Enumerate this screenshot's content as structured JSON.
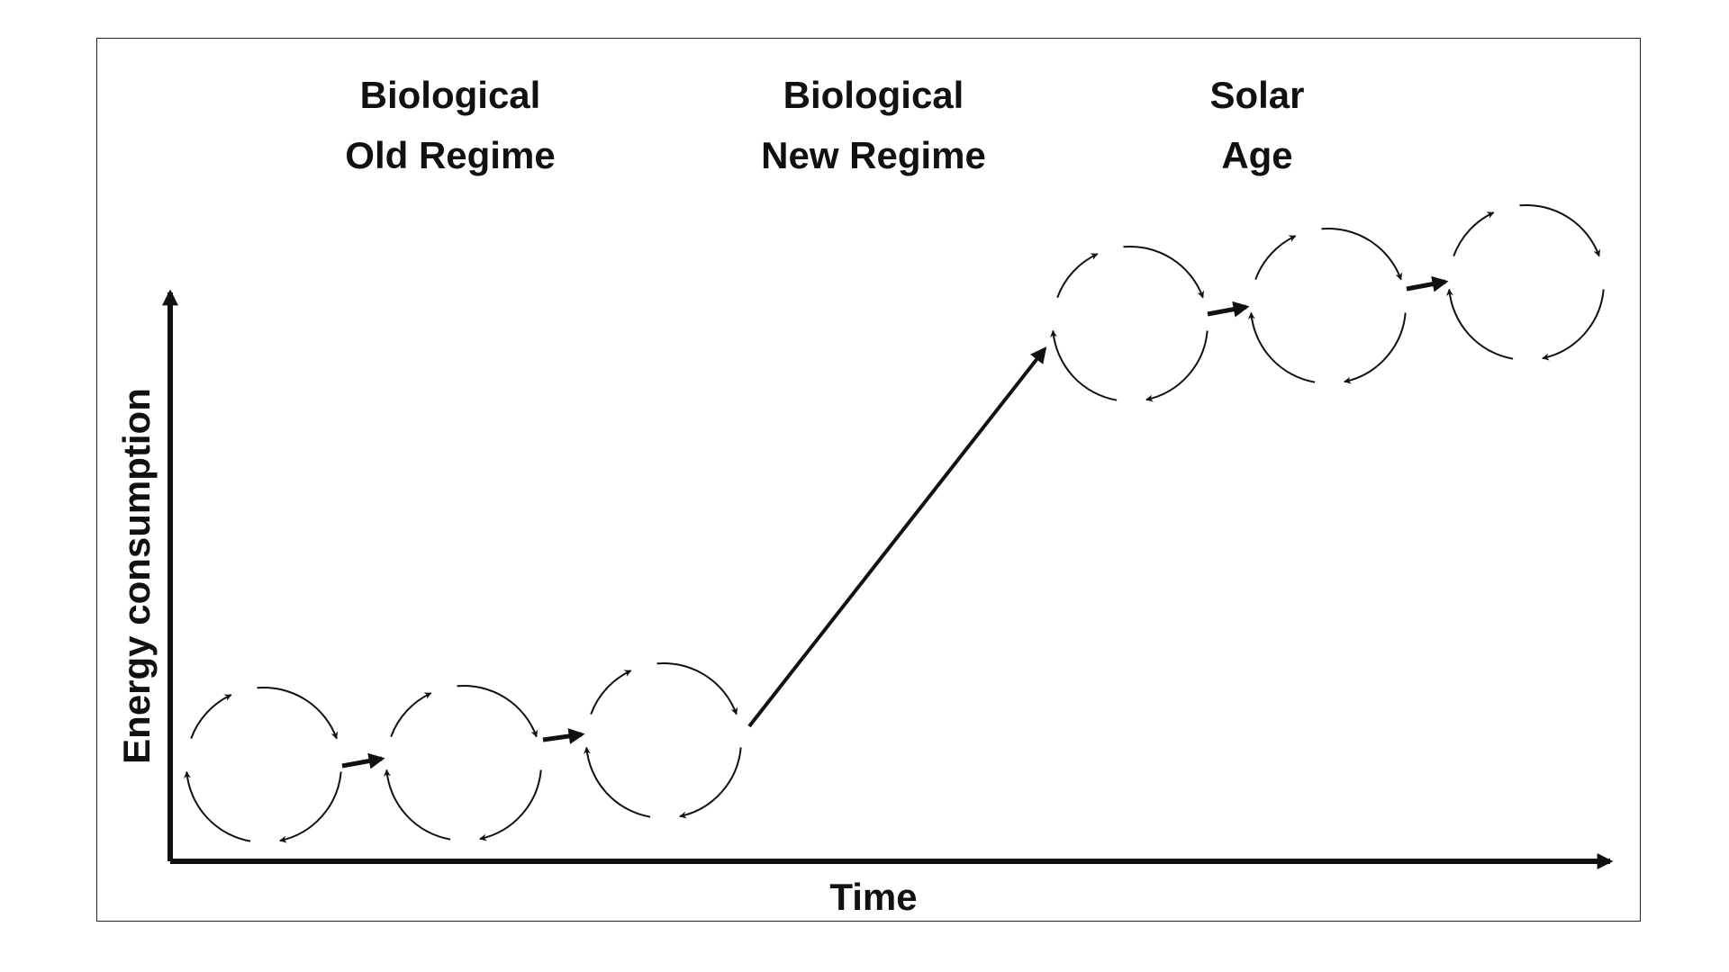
{
  "diagram": {
    "regimes": [
      {
        "line1": "Biological",
        "line2": "Old Regime"
      },
      {
        "line1": "Biological",
        "line2": "New Regime"
      },
      {
        "line1": "Solar",
        "line2": "Age"
      }
    ],
    "axes": {
      "y_label": "Energy consumption",
      "x_label": "Time"
    },
    "stroke_color": "#111111",
    "cycles": {
      "low_count": 3,
      "high_count": 3
    }
  }
}
